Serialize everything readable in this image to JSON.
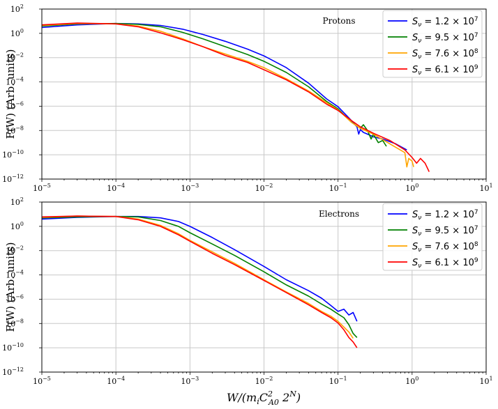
{
  "chart_data": [
    {
      "type": "line",
      "annotation": "Protons",
      "ylabel": "F(W) (Arb. units)",
      "xscale": "log",
      "yscale": "log",
      "xlim": [
        1e-05,
        10
      ],
      "ylim": [
        1e-12,
        100
      ],
      "legend_position": "top-right",
      "series": [
        {
          "name": "1.2",
          "exp": "7",
          "color": "#0000ff",
          "x": [
            1e-05,
            3e-05,
            0.0001,
            0.0002,
            0.0004,
            0.0008,
            0.0015,
            0.003,
            0.006,
            0.01,
            0.02,
            0.04,
            0.07,
            0.1,
            0.15,
            0.18,
            0.19,
            0.2,
            0.22,
            0.25,
            0.3,
            0.4,
            0.6,
            0.85
          ],
          "y": [
            3,
            5,
            6.5,
            6,
            4.5,
            2.2,
            0.8,
            0.22,
            0.05,
            0.014,
            0.0015,
            8e-05,
            4e-06,
            9e-07,
            7e-08,
            2e-08,
            5e-09,
            1.2e-08,
            7e-09,
            5e-09,
            3e-09,
            2e-09,
            8e-10,
            2.5e-10
          ]
        },
        {
          "name": "9.5",
          "exp": "7",
          "color": "#008000",
          "x": [
            1e-05,
            3e-05,
            0.0001,
            0.0002,
            0.0004,
            0.0008,
            0.0015,
            0.003,
            0.006,
            0.01,
            0.02,
            0.04,
            0.07,
            0.1,
            0.15,
            0.2,
            0.22,
            0.25,
            0.28,
            0.3,
            0.35,
            0.4,
            0.45
          ],
          "y": [
            4,
            6,
            6.5,
            5.5,
            3.5,
            1.2,
            0.35,
            0.08,
            0.018,
            0.005,
            0.0006,
            4e-05,
            2.5e-06,
            6e-07,
            5e-08,
            1.5e-08,
            3e-08,
            1e-08,
            2e-09,
            5e-09,
            1e-09,
            1.5e-09,
            5e-10
          ]
        },
        {
          "name": "7.6",
          "exp": "8",
          "color": "#ffa500",
          "x": [
            1e-05,
            3e-05,
            0.0001,
            0.0002,
            0.0004,
            0.0008,
            0.0015,
            0.003,
            0.006,
            0.01,
            0.02,
            0.04,
            0.07,
            0.1,
            0.15,
            0.2,
            0.3,
            0.5,
            0.8,
            0.85,
            0.9,
            1.0,
            1.05
          ],
          "y": [
            4.5,
            6.5,
            6,
            4,
            1.5,
            0.35,
            0.08,
            0.02,
            0.005,
            0.0015,
            0.00018,
            1.8e-05,
            2e-06,
            5e-07,
            5e-08,
            1.5e-08,
            5e-09,
            8e-10,
            1.5e-10,
            1e-11,
            5e-11,
            3e-11,
            1e-11
          ]
        },
        {
          "name": "6.1",
          "exp": "9",
          "color": "#ff0000",
          "x": [
            1e-05,
            3e-05,
            0.0001,
            0.0002,
            0.0004,
            0.0008,
            0.0015,
            0.003,
            0.006,
            0.01,
            0.02,
            0.04,
            0.07,
            0.1,
            0.15,
            0.2,
            0.3,
            0.5,
            0.8,
            1.0,
            1.15,
            1.3,
            1.5,
            1.7
          ],
          "y": [
            5,
            7,
            6,
            3.5,
            1.1,
            0.3,
            0.08,
            0.015,
            0.004,
            0.001,
            0.00015,
            1.5e-05,
            1.5e-06,
            4.5e-07,
            7e-08,
            2e-08,
            6e-09,
            1.5e-09,
            2.5e-10,
            6e-11,
            2e-11,
            5e-11,
            2e-11,
            4e-12
          ]
        }
      ]
    },
    {
      "type": "line",
      "annotation": "Electrons",
      "ylabel": "F(W) (Arb. units)",
      "xlabel": "W/(m_i C^2_A0 2^N)",
      "xlabel_main": "W/(m",
      "xlabel_sub1": "i",
      "xlabel_mid": "C",
      "xlabel_sup2": "2",
      "xlabel_sub2": "A0",
      "xlabel_end": " 2",
      "xlabel_sup3": "N",
      "xlabel_close": ")",
      "xscale": "log",
      "yscale": "log",
      "xlim": [
        1e-05,
        10
      ],
      "ylim": [
        1e-12,
        100
      ],
      "legend_position": "top-right",
      "series": [
        {
          "name": "1.2",
          "exp": "7",
          "color": "#0000ff",
          "x": [
            1e-05,
            3e-05,
            0.0001,
            0.0002,
            0.0004,
            0.0007,
            0.001,
            0.002,
            0.004,
            0.01,
            0.02,
            0.04,
            0.06,
            0.08,
            0.1,
            0.12,
            0.14,
            0.16,
            0.18
          ],
          "y": [
            4,
            5.5,
            6.5,
            6.5,
            5,
            2.5,
            1,
            0.12,
            0.012,
            0.0005,
            4e-05,
            5e-06,
            1.2e-06,
            3e-07,
            1e-07,
            1.5e-07,
            5e-08,
            8e-08,
            1.5e-08
          ]
        },
        {
          "name": "9.5",
          "exp": "7",
          "color": "#008000",
          "x": [
            1e-05,
            3e-05,
            0.0001,
            0.0002,
            0.0004,
            0.0007,
            0.001,
            0.002,
            0.004,
            0.01,
            0.02,
            0.04,
            0.06,
            0.08,
            0.1,
            0.12,
            0.14,
            0.16,
            0.18
          ],
          "y": [
            5,
            6,
            6.5,
            6,
            3,
            1,
            0.3,
            0.035,
            0.004,
            0.00018,
            1.5e-05,
            1.8e-06,
            4e-07,
            1.5e-07,
            6e-08,
            3e-08,
            8e-09,
            1.5e-09,
            7e-10
          ]
        },
        {
          "name": "7.6",
          "exp": "8",
          "color": "#ffa500",
          "x": [
            1e-05,
            3e-05,
            0.0001,
            0.0002,
            0.0004,
            0.0007,
            0.001,
            0.002,
            0.004,
            0.01,
            0.02,
            0.04,
            0.06,
            0.08,
            0.1,
            0.12,
            0.14,
            0.16
          ],
          "y": [
            5.5,
            7,
            6.5,
            4,
            1.2,
            0.25,
            0.07,
            0.008,
            0.0009,
            4e-05,
            4e-06,
            4.5e-07,
            1e-07,
            4e-08,
            1.5e-08,
            5e-09,
            2e-09,
            6e-10
          ]
        },
        {
          "name": "6.1",
          "exp": "9",
          "color": "#ff0000",
          "x": [
            1e-05,
            3e-05,
            0.0001,
            0.0002,
            0.0004,
            0.0007,
            0.001,
            0.002,
            0.004,
            0.01,
            0.02,
            0.04,
            0.06,
            0.08,
            0.1,
            0.12,
            0.14,
            0.16,
            0.18
          ],
          "y": [
            6,
            7,
            6.5,
            3.5,
            1,
            0.2,
            0.06,
            0.006,
            0.0007,
            3.5e-05,
            3.5e-06,
            3.5e-07,
            8e-08,
            3e-08,
            1.1e-08,
            3e-09,
            7e-10,
            3e-10,
            1e-10
          ]
        }
      ]
    }
  ],
  "legend_prefix": "S",
  "legend_sub": "ν",
  "legend_eq": " = ",
  "legend_times": " × 10",
  "tick_base": "10",
  "y_tick_exps": [
    "2",
    "0",
    "−2",
    "−4",
    "−6",
    "−8",
    "−10",
    "−12"
  ],
  "x_tick_exps": [
    "−5",
    "−4",
    "−3",
    "−2",
    "−1",
    "0",
    "1"
  ]
}
